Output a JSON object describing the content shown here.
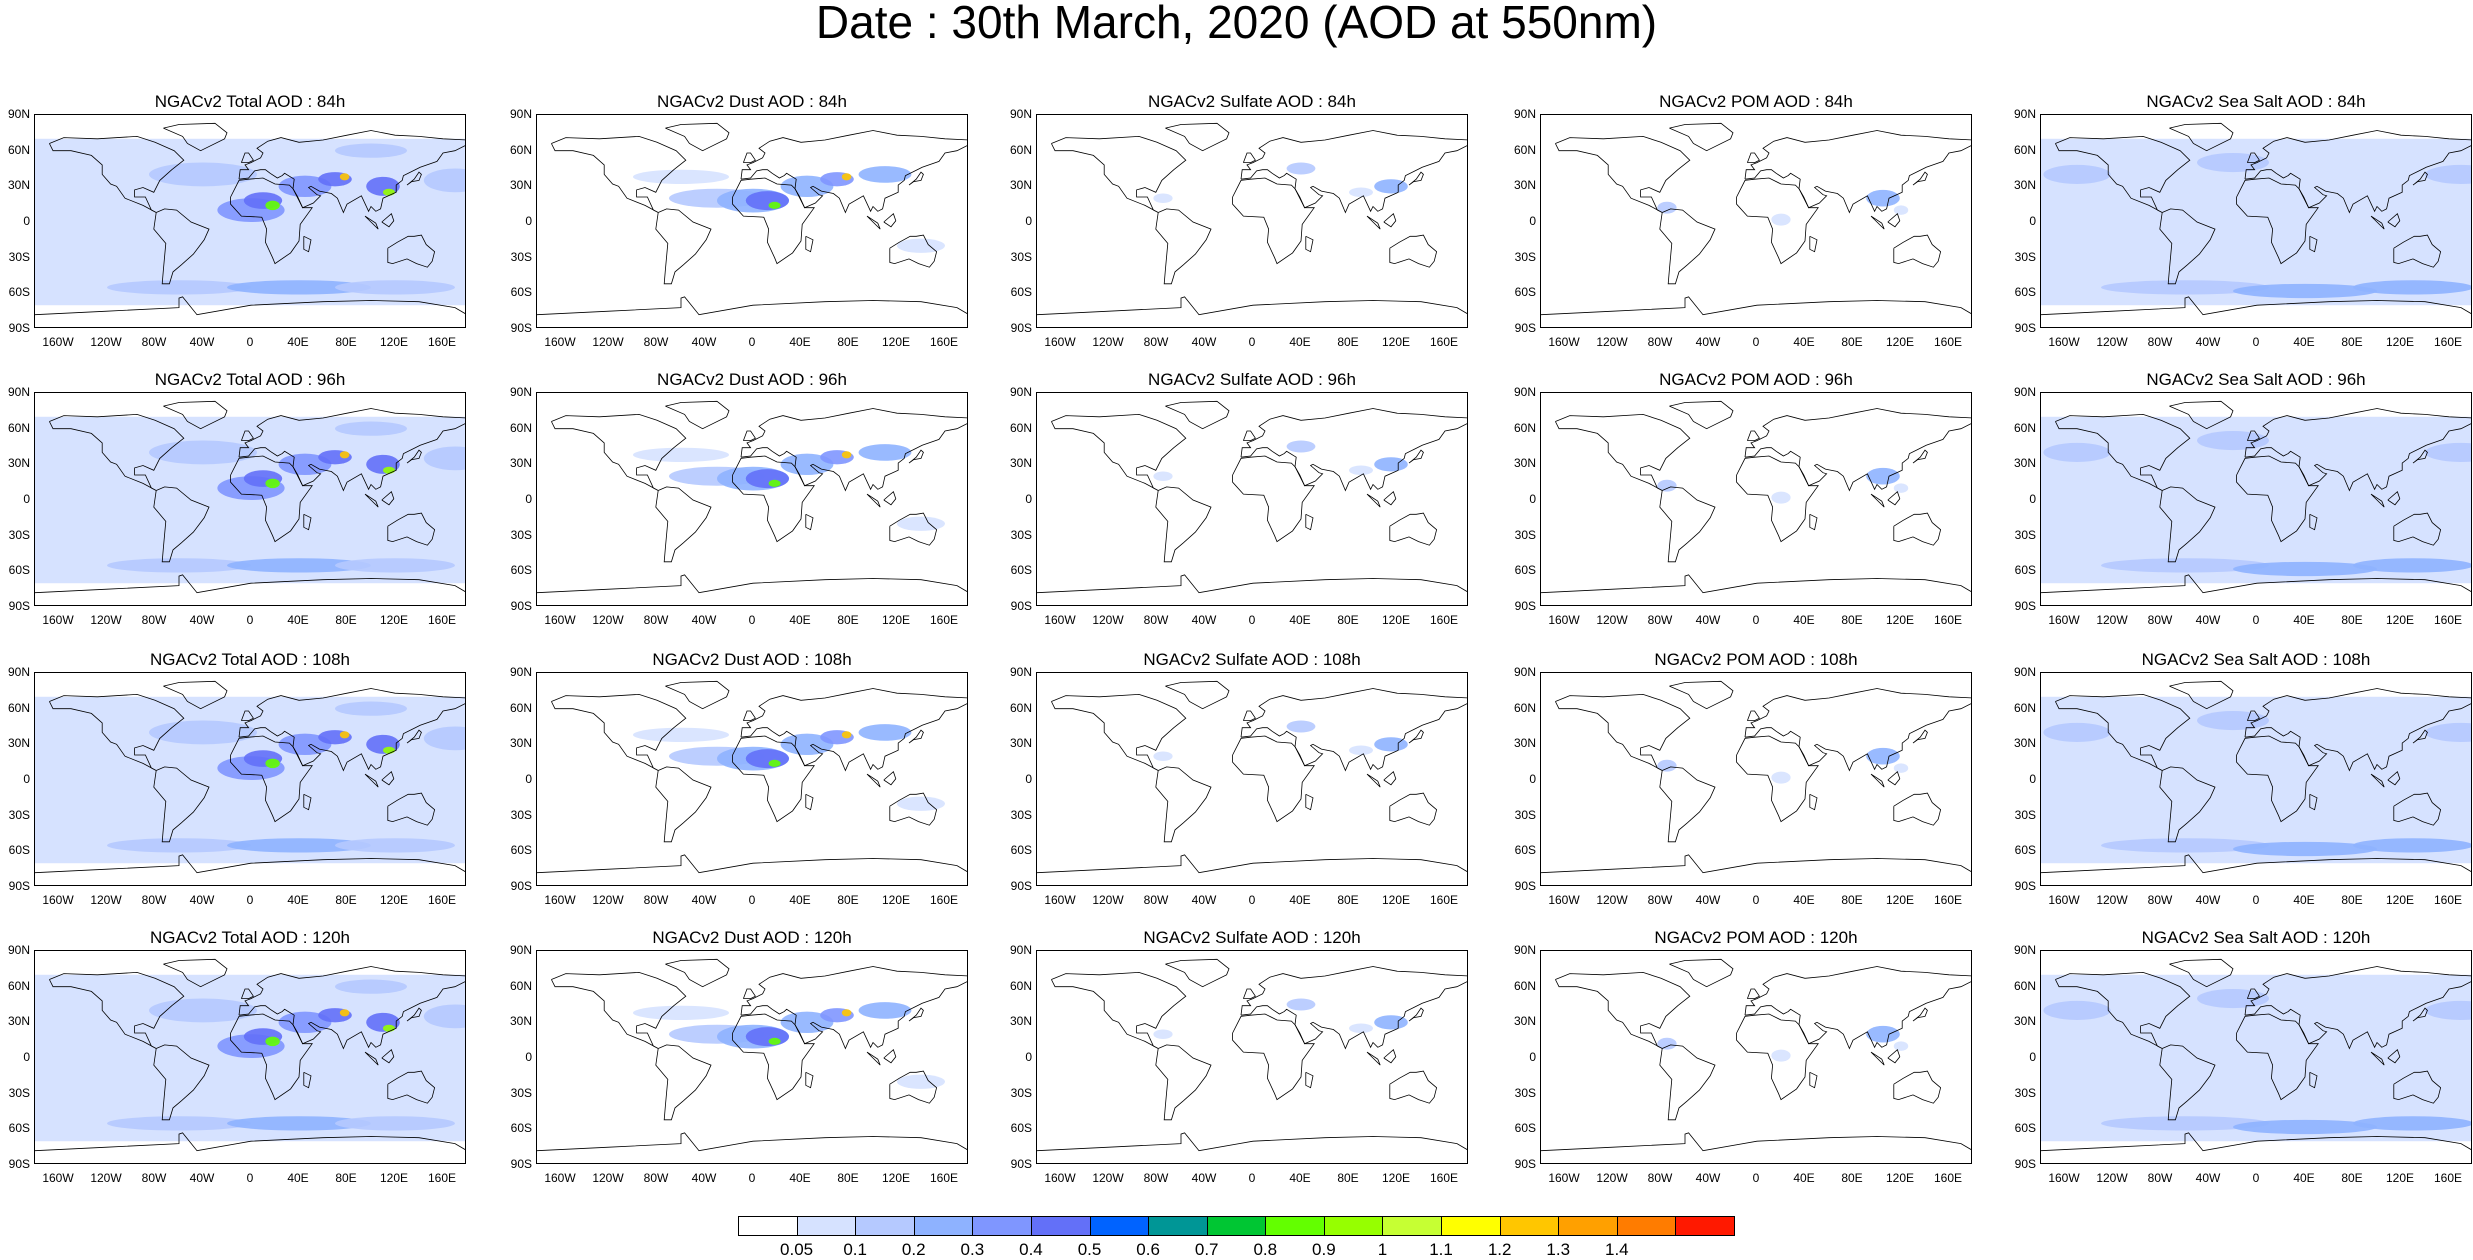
{
  "title": "Date : 30th March, 2020 (AOD at 550nm)",
  "lat_ticks": [
    "90N",
    "60N",
    "30N",
    "0",
    "30S",
    "60S",
    "90S"
  ],
  "lon_ticks": [
    "160W",
    "120W",
    "80W",
    "40W",
    "0",
    "40E",
    "80E",
    "120E",
    "160E"
  ],
  "map_grid": {
    "rows": [
      {
        "forecast_hour": "84h",
        "panels": [
          {
            "species": "Total",
            "title": "NGACv2 Total AOD : 84h"
          },
          {
            "species": "Dust",
            "title": "NGACv2 Dust AOD : 84h"
          },
          {
            "species": "Sulfate",
            "title": "NGACv2 Sulfate AOD : 84h"
          },
          {
            "species": "POM",
            "title": "NGACv2 POM AOD : 84h"
          },
          {
            "species": "Sea Salt",
            "title": "NGACv2 Sea Salt AOD : 84h"
          }
        ]
      },
      {
        "forecast_hour": "96h",
        "panels": [
          {
            "species": "Total",
            "title": "NGACv2 Total AOD : 96h"
          },
          {
            "species": "Dust",
            "title": "NGACv2 Dust AOD : 96h"
          },
          {
            "species": "Sulfate",
            "title": "NGACv2 Sulfate AOD : 96h"
          },
          {
            "species": "POM",
            "title": "NGACv2 POM AOD : 96h"
          },
          {
            "species": "Sea Salt",
            "title": "NGACv2 Sea Salt AOD : 96h"
          }
        ]
      },
      {
        "forecast_hour": "108h",
        "panels": [
          {
            "species": "Total",
            "title": "NGACv2 Total AOD : 108h"
          },
          {
            "species": "Dust",
            "title": "NGACv2 Dust AOD : 108h"
          },
          {
            "species": "Sulfate",
            "title": "NGACv2 Sulfate AOD : 108h"
          },
          {
            "species": "POM",
            "title": "NGACv2 POM AOD : 108h"
          },
          {
            "species": "Sea Salt",
            "title": "NGACv2 Sea Salt AOD : 108h"
          }
        ]
      },
      {
        "forecast_hour": "120h",
        "panels": [
          {
            "species": "Total",
            "title": "NGACv2 Total AOD : 120h"
          },
          {
            "species": "Dust",
            "title": "NGACv2 Dust AOD : 120h"
          },
          {
            "species": "Sulfate",
            "title": "NGACv2 Sulfate AOD : 120h"
          },
          {
            "species": "POM",
            "title": "NGACv2 POM AOD : 120h"
          },
          {
            "species": "Sea Salt",
            "title": "NGACv2 Sea Salt  AOD : 120h"
          }
        ]
      }
    ]
  },
  "colorbar": {
    "labels": [
      "0.05",
      "0.1",
      "0.2",
      "0.3",
      "0.4",
      "0.5",
      "0.6",
      "0.7",
      "0.8",
      "0.9",
      "1",
      "1.1",
      "1.2",
      "1.3",
      "1.4"
    ],
    "colors": [
      "#ffffff",
      "#d6e2ff",
      "#b5c9ff",
      "#8eb2ff",
      "#7f96ff",
      "#6370f8",
      "#0063ff",
      "#009696",
      "#00c633",
      "#63ff00",
      "#96ff00",
      "#c6ff33",
      "#ffff00",
      "#ffc600",
      "#ffa000",
      "#ff7c00",
      "#ff1900"
    ]
  }
}
